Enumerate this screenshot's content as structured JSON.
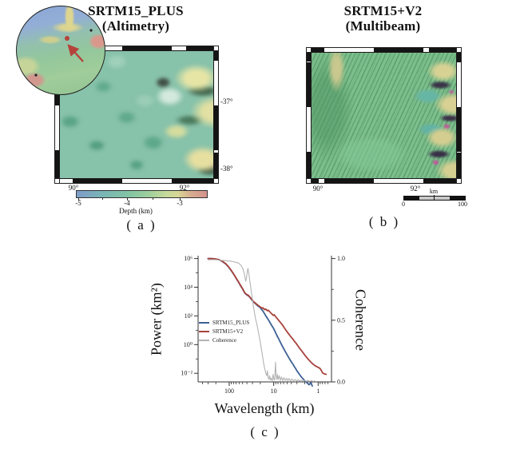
{
  "panel_a": {
    "title": "SRTM15_PLUS",
    "subtitle": "(Altimetry)",
    "caption": "( a )",
    "lat_labels": [
      "-37°",
      "-38°"
    ],
    "lon_labels": [
      "90°",
      "92°"
    ],
    "colorbar": {
      "tick_labels": [
        "-5",
        "-4",
        "-3"
      ],
      "label": "Depth (km)",
      "gradient": [
        "#7e9cc8",
        "#79b5b5",
        "#83c4a4",
        "#9ccf9c",
        "#c4da9a",
        "#d8d795",
        "#d8ab90",
        "#d4938e"
      ]
    },
    "map_palette": {
      "base": "#87c2aa",
      "high": "#e7e5a6",
      "shadow": "#41654c",
      "spot": "#c05f9b"
    }
  },
  "panel_b": {
    "title": "SRTM15+V2",
    "subtitle": "(Multibeam)",
    "caption": "( b )",
    "lon_labels": [
      "90°",
      "92°"
    ],
    "scalebar": {
      "unit": "km",
      "start": "0",
      "end": "100"
    },
    "map_palette": {
      "base": "#7dbf8c",
      "high": "#d7d294",
      "shadow": "#3a3548",
      "spot": "#c2549a"
    }
  },
  "panel_c": {
    "caption": "( c )"
  },
  "chart_data": {
    "type": "line",
    "xlabel": "Wavelength (km)",
    "ylabel_left": "Power (km²)",
    "ylabel_right": "Coherence",
    "x_axis": {
      "scale": "log",
      "reversed": true,
      "range_km": [
        500,
        0.5
      ],
      "ticks": [
        100,
        10,
        1
      ],
      "tick_labels": [
        "100",
        "10",
        "1"
      ],
      "minor_ticks": [
        400,
        300,
        200,
        90,
        80,
        70,
        60,
        50,
        40,
        30,
        20,
        9,
        8,
        7,
        6,
        5,
        4,
        3,
        2,
        0.9,
        0.8,
        0.7,
        0.6
      ]
    },
    "y_left_axis": {
      "scale": "log",
      "range_exp": [
        -2.6,
        6.2
      ],
      "ticks": [
        1000000,
        10000,
        100,
        1,
        0.01
      ],
      "tick_labels": [
        "10⁶",
        "10⁴",
        "10²",
        "10⁰",
        "10⁻²"
      ],
      "minor_ticks": [
        100000,
        1000,
        10,
        0.1
      ]
    },
    "y_right_axis": {
      "scale": "linear",
      "range": [
        0.0,
        1.0
      ],
      "ticks": [
        1.0,
        0.5,
        0.0
      ],
      "tick_labels": [
        "1.0",
        "0.5",
        "0.0"
      ],
      "minor_ticks": [
        0.75,
        0.25
      ]
    },
    "legend_position": "center-left",
    "series": [
      {
        "name": "SRTM15_PLUS",
        "color": "#3d6094",
        "width": 1.8,
        "axis": "left",
        "points": [
          [
            300,
            1000000
          ],
          [
            250,
            1000000
          ],
          [
            210,
            950000
          ],
          [
            170,
            820000
          ],
          [
            140,
            600000
          ],
          [
            120,
            420000
          ],
          [
            105,
            270000
          ],
          [
            95,
            180000
          ],
          [
            85,
            110000
          ],
          [
            76,
            65000
          ],
          [
            68,
            36000
          ],
          [
            61,
            21000
          ],
          [
            55,
            12000
          ],
          [
            50,
            7500
          ],
          [
            46,
            4600
          ],
          [
            43,
            3400
          ],
          [
            40,
            2900
          ],
          [
            37,
            2500
          ],
          [
            34,
            1900
          ],
          [
            31,
            1300
          ],
          [
            29,
            1000
          ],
          [
            27,
            820
          ],
          [
            25,
            660
          ],
          [
            23,
            520
          ],
          [
            21,
            420
          ],
          [
            20,
            370
          ],
          [
            19,
            300
          ],
          [
            18,
            250
          ],
          [
            17,
            190
          ],
          [
            16,
            140
          ],
          [
            15,
            100
          ],
          [
            14,
            72
          ],
          [
            13,
            50
          ],
          [
            12,
            33
          ],
          [
            11,
            21
          ],
          [
            10,
            13
          ],
          [
            9.4,
            8.8
          ],
          [
            8.8,
            5.6
          ],
          [
            8.2,
            3.6
          ],
          [
            7.6,
            2.3
          ],
          [
            7.1,
            1.5
          ],
          [
            6.6,
            0.95
          ],
          [
            6.2,
            0.65
          ],
          [
            5.8,
            0.45
          ],
          [
            5.4,
            0.3
          ],
          [
            5,
            0.2
          ],
          [
            4.7,
            0.14
          ],
          [
            4.4,
            0.1
          ],
          [
            4.1,
            0.07
          ],
          [
            3.8,
            0.05
          ],
          [
            3.6,
            0.038
          ],
          [
            3.4,
            0.028
          ],
          [
            3.2,
            0.021
          ],
          [
            3,
            0.015
          ],
          [
            2.8,
            0.011
          ],
          [
            2.6,
            0.008
          ],
          [
            2.45,
            0.0062
          ],
          [
            2.3,
            0.0049
          ],
          [
            2.15,
            0.0039
          ],
          [
            2,
            0.0031
          ],
          [
            1.9,
            0.0026
          ],
          [
            1.8,
            0.0022
          ],
          [
            1.7,
            0.0019
          ],
          [
            1.6,
            0.0016
          ],
          [
            1.52,
            0.0019
          ],
          [
            1.45,
            0.0023
          ],
          [
            1.4,
            0.0016
          ],
          [
            1.35,
            0.0013
          ]
        ]
      },
      {
        "name": "SRTM15+V2",
        "color": "#a8423c",
        "width": 1.8,
        "axis": "left",
        "points": [
          [
            300,
            1000000
          ],
          [
            250,
            1000000
          ],
          [
            210,
            960000
          ],
          [
            170,
            840000
          ],
          [
            140,
            620000
          ],
          [
            120,
            440000
          ],
          [
            105,
            280000
          ],
          [
            95,
            190000
          ],
          [
            85,
            115000
          ],
          [
            76,
            68000
          ],
          [
            68,
            38000
          ],
          [
            61,
            22000
          ],
          [
            55,
            13000
          ],
          [
            50,
            8000
          ],
          [
            46,
            4900
          ],
          [
            43,
            3600
          ],
          [
            40,
            3100
          ],
          [
            37,
            2700
          ],
          [
            34,
            2000
          ],
          [
            31,
            1400
          ],
          [
            29,
            1080
          ],
          [
            27,
            880
          ],
          [
            25,
            720
          ],
          [
            23,
            580
          ],
          [
            21,
            470
          ],
          [
            20,
            420
          ],
          [
            19,
            380
          ],
          [
            18.2,
            340
          ],
          [
            17.5,
            370
          ],
          [
            16.8,
            320
          ],
          [
            16,
            280
          ],
          [
            15.2,
            300
          ],
          [
            14.5,
            260
          ],
          [
            13.8,
            230
          ],
          [
            13.2,
            250
          ],
          [
            12.5,
            210
          ],
          [
            12,
            180
          ],
          [
            11.4,
            150
          ],
          [
            10.8,
            130
          ],
          [
            10.2,
            110
          ],
          [
            9.7,
            120
          ],
          [
            9.2,
            95
          ],
          [
            8.8,
            80
          ],
          [
            8.4,
            68
          ],
          [
            8,
            57
          ],
          [
            7.6,
            46
          ],
          [
            7.2,
            38
          ],
          [
            6.8,
            30
          ],
          [
            6.4,
            24
          ],
          [
            6,
            18
          ],
          [
            5.7,
            14
          ],
          [
            5.4,
            11
          ],
          [
            5.1,
            8.5
          ],
          [
            4.8,
            6.6
          ],
          [
            4.5,
            5.1
          ],
          [
            4.3,
            4.2
          ],
          [
            4.1,
            3.5
          ],
          [
            3.9,
            2.9
          ],
          [
            3.7,
            2.4
          ],
          [
            3.5,
            1.9
          ],
          [
            3.3,
            1.5
          ],
          [
            3.1,
            1.2
          ],
          [
            2.95,
            0.95
          ],
          [
            2.8,
            0.76
          ],
          [
            2.65,
            0.6
          ],
          [
            2.5,
            0.47
          ],
          [
            2.35,
            0.37
          ],
          [
            2.2,
            0.28
          ],
          [
            2.1,
            0.23
          ],
          [
            2,
            0.19
          ],
          [
            1.9,
            0.155
          ],
          [
            1.8,
            0.125
          ],
          [
            1.7,
            0.1
          ],
          [
            1.6,
            0.082
          ],
          [
            1.5,
            0.066
          ],
          [
            1.4,
            0.053
          ],
          [
            1.3,
            0.043
          ],
          [
            1.2,
            0.036
          ],
          [
            1.12,
            0.031
          ],
          [
            1.05,
            0.028
          ],
          [
            1,
            0.026
          ],
          [
            0.95,
            0.024
          ],
          [
            0.9,
            0.021
          ],
          [
            0.85,
            0.016
          ],
          [
            0.8,
            0.011
          ],
          [
            0.75,
            0.0095
          ],
          [
            0.7,
            0.0088
          ],
          [
            0.66,
            0.0085
          ]
        ]
      },
      {
        "name": "Coherence",
        "color": "#b3b3b3",
        "width": 1.1,
        "axis": "right",
        "points": [
          [
            300,
            0.99
          ],
          [
            250,
            0.99
          ],
          [
            200,
            0.99
          ],
          [
            160,
            0.985
          ],
          [
            130,
            0.985
          ],
          [
            110,
            0.98
          ],
          [
            95,
            0.98
          ],
          [
            82,
            0.975
          ],
          [
            72,
            0.97
          ],
          [
            64,
            0.965
          ],
          [
            58,
            0.955
          ],
          [
            53,
            0.94
          ],
          [
            49,
            0.915
          ],
          [
            46,
            0.88
          ],
          [
            44,
            0.845
          ],
          [
            42.5,
            0.815
          ],
          [
            41,
            0.84
          ],
          [
            40,
            0.87
          ],
          [
            39,
            0.9
          ],
          [
            38,
            0.92
          ],
          [
            37,
            0.9
          ],
          [
            36,
            0.87
          ],
          [
            34.5,
            0.82
          ],
          [
            33,
            0.77
          ],
          [
            31.5,
            0.72
          ],
          [
            30,
            0.67
          ],
          [
            28.5,
            0.61
          ],
          [
            27,
            0.56
          ],
          [
            25.5,
            0.51
          ],
          [
            24,
            0.47
          ],
          [
            22,
            0.4
          ],
          [
            20,
            0.32
          ],
          [
            18,
            0.22
          ],
          [
            17,
            0.16
          ],
          [
            16,
            0.11
          ],
          [
            15,
            0.07
          ],
          [
            14.3,
            0.05
          ],
          [
            13.8,
            0.09
          ],
          [
            13.3,
            0.035
          ],
          [
            12.8,
            0.02
          ],
          [
            12.3,
            0.05
          ],
          [
            11.8,
            0.015
          ],
          [
            11.3,
            0.03
          ],
          [
            10.8,
            0.01
          ],
          [
            10.3,
            0.06
          ],
          [
            9.9,
            0.02
          ],
          [
            9.5,
            0.015
          ],
          [
            9.1,
            0.16
          ],
          [
            8.8,
            0.05
          ],
          [
            8.5,
            0.02
          ],
          [
            8.2,
            0.06
          ],
          [
            7.9,
            0.02
          ],
          [
            7.5,
            0.05
          ],
          [
            7.1,
            0.012
          ],
          [
            6.7,
            0.04
          ],
          [
            6.3,
            0.01
          ],
          [
            5.9,
            0.035
          ],
          [
            5.5,
            0.012
          ],
          [
            5.1,
            0.03
          ],
          [
            4.8,
            0.01
          ],
          [
            4.5,
            0.028
          ],
          [
            4.2,
            0.009
          ],
          [
            3.9,
            0.024
          ],
          [
            3.6,
            0.008
          ],
          [
            3.3,
            0.02
          ],
          [
            3,
            0.007
          ],
          [
            2.8,
            0.018
          ],
          [
            2.6,
            0.006
          ],
          [
            2.4,
            0.016
          ],
          [
            2.2,
            0.005
          ],
          [
            2,
            0.014
          ],
          [
            1.85,
            0.004
          ],
          [
            1.7,
            0.012
          ],
          [
            1.55,
            0.004
          ],
          [
            1.4,
            0.01
          ],
          [
            1.3,
            0.003
          ],
          [
            1.2,
            0.007
          ]
        ]
      }
    ]
  }
}
